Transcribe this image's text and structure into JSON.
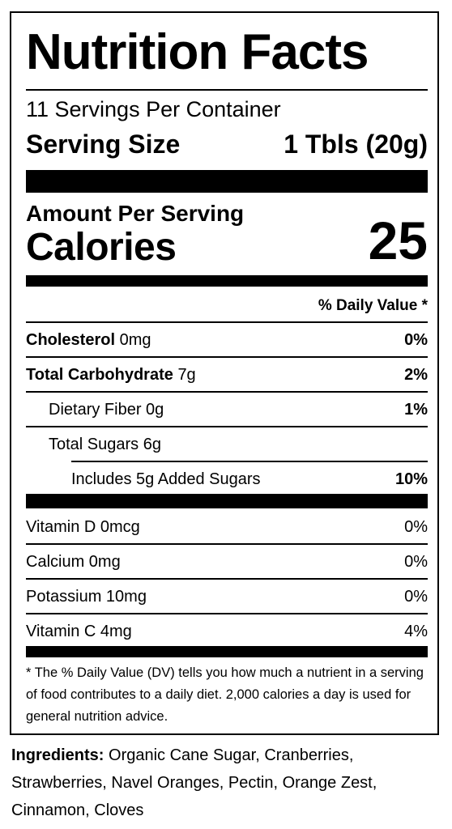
{
  "title": "Nutrition Facts",
  "servings_per_container": "11 Servings Per Container",
  "serving_size": {
    "label": "Serving Size",
    "value": "1 Tbls (20g)"
  },
  "amount_per_serving": "Amount Per Serving",
  "calories": {
    "label": "Calories",
    "value": "25"
  },
  "dv_header": "% Daily Value *",
  "nutrients": [
    {
      "name": "Cholesterol",
      "amount": "0mg",
      "dv": "0%"
    },
    {
      "name": "Total Carbohydrate",
      "amount": "7g",
      "dv": "2%"
    },
    {
      "name": "Dietary Fiber",
      "amount": "0g",
      "dv": "1%"
    },
    {
      "name": "Total Sugars",
      "amount": "6g",
      "dv": ""
    },
    {
      "name": "Includes 5g Added Sugars",
      "amount": "",
      "dv": "10%"
    }
  ],
  "vitamins": [
    {
      "text": "Vitamin D 0mcg",
      "dv": "0%"
    },
    {
      "text": "Calcium 0mg",
      "dv": "0%"
    },
    {
      "text": "Potassium 10mg",
      "dv": "0%"
    },
    {
      "text": "Vitamin C 4mg",
      "dv": "4%"
    }
  ],
  "footnote": "* The % Daily Value (DV) tells you how much a nutrient in a serving of food contributes to a daily diet. 2,000 calories a day is used for general nutrition advice.",
  "ingredients": {
    "label": "Ingredients:",
    "text": " Organic Cane Sugar, Cranberries, Strawberries, Navel Oranges, Pectin, Orange Zest, Cinnamon, Cloves"
  }
}
